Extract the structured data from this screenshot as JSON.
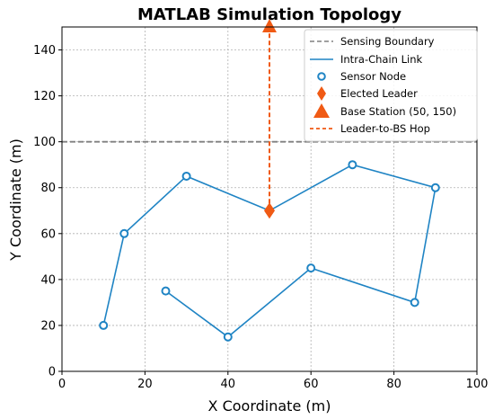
{
  "chart_data": {
    "type": "scatter",
    "title": "MATLAB Simulation Topology",
    "xlabel": "X Coordinate (m)",
    "ylabel": "Y Coordinate (m)",
    "xlim": [
      0,
      100
    ],
    "ylim": [
      0,
      150
    ],
    "xticks": [
      0,
      20,
      40,
      60,
      80,
      100
    ],
    "yticks": [
      0,
      20,
      40,
      60,
      80,
      100,
      120,
      140
    ],
    "grid": true,
    "legend_position": "top-right",
    "legend": [
      "Sensing Boundary",
      "Intra-Chain Link",
      "Sensor Node",
      "Elected Leader",
      "Base Station (50, 150)",
      "Leader-to-BS Hop"
    ],
    "sensing_boundary_y": 100,
    "chain": [
      [
        10,
        20
      ],
      [
        15,
        60
      ],
      [
        30,
        85
      ],
      [
        50,
        70
      ],
      [
        70,
        90
      ],
      [
        90,
        80
      ],
      [
        85,
        30
      ],
      [
        60,
        45
      ],
      [
        40,
        15
      ],
      [
        25,
        35
      ]
    ],
    "leader": [
      50,
      70
    ],
    "base_station": [
      50,
      150
    ],
    "colors": {
      "chain": "#1f84c4",
      "leader": "#f05a14",
      "boundary": "#808080",
      "grid": "#b0b0b0"
    }
  }
}
